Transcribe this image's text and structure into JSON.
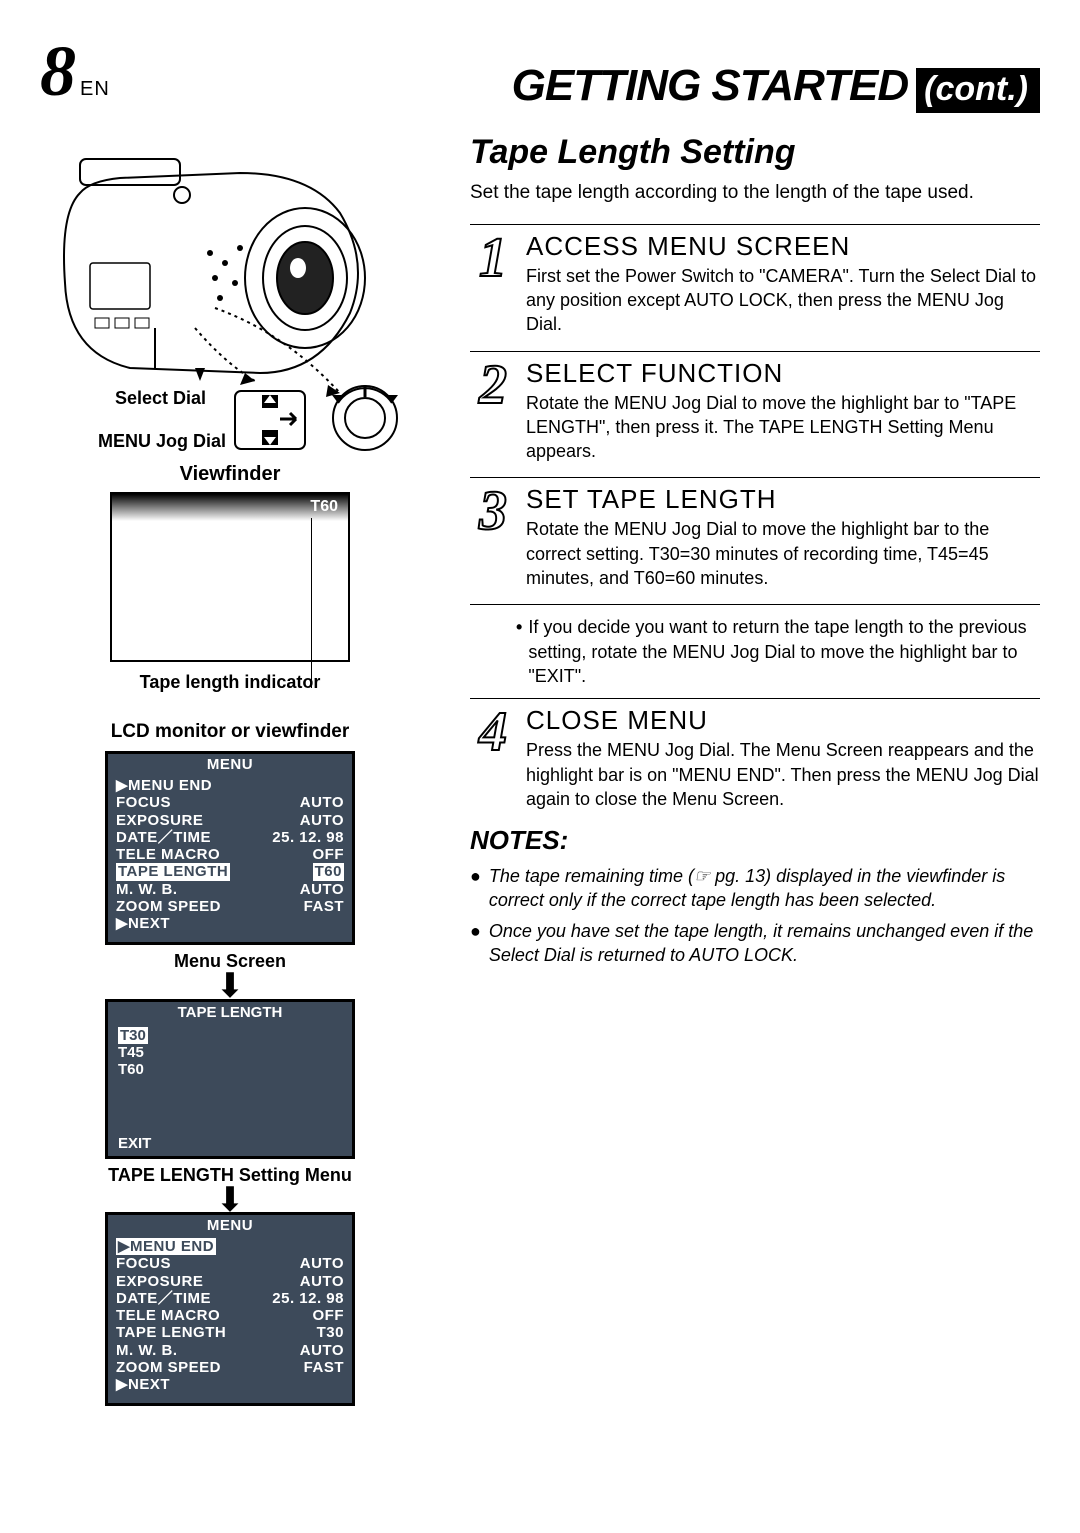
{
  "header": {
    "page_number": "8",
    "lang": "EN",
    "title_main": "GETTING STARTED",
    "title_cont": "(cont.)"
  },
  "diagram": {
    "select_dial_label": "Select Dial",
    "menu_jog_label": "MENU Jog Dial",
    "viewfinder_label": "Viewfinder",
    "vf_indicator": "T60",
    "tape_length_indicator_label": "Tape length indicator",
    "lcd_label": "LCD monitor or viewfinder"
  },
  "menu_screen": {
    "title": "MENU",
    "items": [
      {
        "label": "MENU END",
        "value": "",
        "tri": true,
        "inv": false
      },
      {
        "label": "FOCUS",
        "value": "AUTO"
      },
      {
        "label": "EXPOSURE",
        "value": "AUTO"
      },
      {
        "label": "DATE／TIME",
        "value": "25. 12. 98"
      },
      {
        "label": "TELE  MACRO",
        "value": "OFF"
      },
      {
        "label": "TAPE  LENGTH",
        "value": "T60",
        "inv": true,
        "inv_value": true
      },
      {
        "label": "M. W. B.",
        "value": "AUTO"
      },
      {
        "label": "ZOOM SPEED",
        "value": "FAST"
      },
      {
        "label": "NEXT",
        "value": "",
        "tri": true
      }
    ],
    "caption": "Menu Screen"
  },
  "tape_length_menu": {
    "title": "TAPE  LENGTH",
    "options": [
      "T30",
      "T45",
      "T60"
    ],
    "selected_index": 0,
    "exit": "EXIT",
    "caption": "TAPE LENGTH Setting Menu"
  },
  "menu_screen_after": {
    "title": "MENU",
    "items": [
      {
        "label": "MENU END",
        "value": "",
        "tri": true,
        "inv": true
      },
      {
        "label": "FOCUS",
        "value": "AUTO"
      },
      {
        "label": "EXPOSURE",
        "value": "AUTO"
      },
      {
        "label": "DATE／TIME",
        "value": "25. 12. 98"
      },
      {
        "label": "TELE  MACRO",
        "value": "OFF"
      },
      {
        "label": "TAPE  LENGTH",
        "value": "T30"
      },
      {
        "label": "M. W. B.",
        "value": "AUTO"
      },
      {
        "label": "ZOOM SPEED",
        "value": "FAST"
      },
      {
        "label": "NEXT",
        "value": "",
        "tri": true
      }
    ]
  },
  "right": {
    "section_title": "Tape Length Setting",
    "intro": "Set the tape length according to the length of the tape used.",
    "steps": [
      {
        "num": "1",
        "title": "ACCESS MENU SCREEN",
        "body": "First set the Power Switch to \"CAMERA\". Turn the Select Dial to any position except AUTO LOCK, then press the MENU Jog Dial."
      },
      {
        "num": "2",
        "title": "SELECT FUNCTION",
        "body": "Rotate the MENU Jog Dial to move the highlight bar to \"TAPE LENGTH\", then press it. The TAPE LENGTH Setting Menu appears."
      },
      {
        "num": "3",
        "title": "SET TAPE LENGTH",
        "body": "Rotate the MENU Jog Dial to move the highlight bar to the correct setting. T30=30 minutes of recording time, T45=45 minutes, and T60=60 minutes."
      }
    ],
    "bullet": "If  you decide you want to return the tape length to the previous setting, rotate the MENU Jog Dial to move the highlight bar to \"EXIT\".",
    "step4": {
      "num": "4",
      "title": "CLOSE MENU",
      "body": "Press the MENU Jog Dial. The Menu Screen reappears and the highlight bar is on \"MENU END\". Then press the MENU Jog Dial again to close the Menu Screen."
    },
    "notes_title": "NOTES:",
    "notes": [
      "The tape remaining time (☞ pg. 13) displayed in the viewfinder is correct only if the correct tape length has been selected.",
      "Once you have set the tape length, it remains un­changed even if the Select Dial is returned to AUTO LOCK."
    ]
  },
  "colors": {
    "menu_bg": "#3d4a5a"
  }
}
